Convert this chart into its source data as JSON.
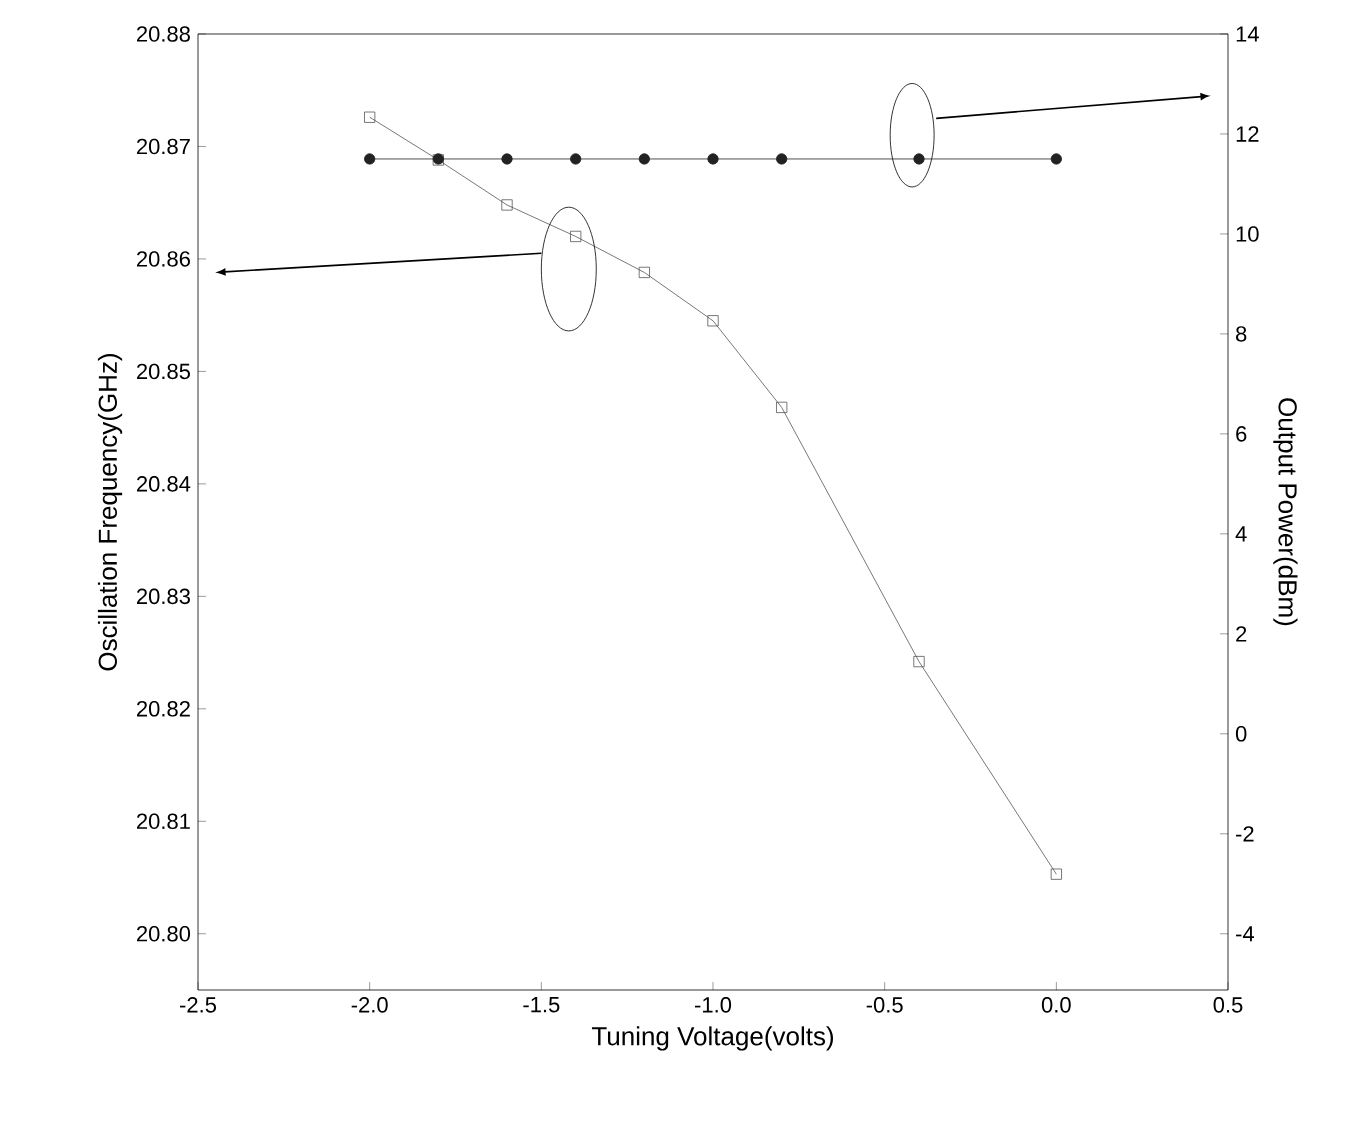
{
  "chart_data": {
    "type": "line",
    "xlabel": "Tuning Voltage(volts)",
    "ylabel": "Oscillation Frequency(GHz)",
    "y2label": "Output Power(dBm)",
    "xlim": [
      -2.5,
      0.5
    ],
    "ylim": [
      20.795,
      20.88
    ],
    "y2lim": [
      -5.125,
      14
    ],
    "xticks": [
      {
        "value": -2.5,
        "label": "-2.5"
      },
      {
        "value": -2,
        "label": "-2.0"
      },
      {
        "value": -1.5,
        "label": "-1.5"
      },
      {
        "value": -1,
        "label": "-1.0"
      },
      {
        "value": -0.5,
        "label": "-0.5"
      },
      {
        "value": 0,
        "label": "0.0"
      },
      {
        "value": 0.5,
        "label": "0.5"
      }
    ],
    "yticks": [
      {
        "value": 20.8,
        "label": "20.80"
      },
      {
        "value": 20.81,
        "label": "20.81"
      },
      {
        "value": 20.82,
        "label": "20.82"
      },
      {
        "value": 20.83,
        "label": "20.83"
      },
      {
        "value": 20.84,
        "label": "20.84"
      },
      {
        "value": 20.85,
        "label": "20.85"
      },
      {
        "value": 20.86,
        "label": "20.86"
      },
      {
        "value": 20.87,
        "label": "20.87"
      },
      {
        "value": 20.88,
        "label": "20.88"
      }
    ],
    "y2ticks": [
      -4,
      -2,
      0,
      2,
      4,
      6,
      8,
      10,
      12,
      14
    ],
    "series": [
      {
        "color": "#555555",
        "marker": "square",
        "x": [
          -2.0,
          -1.8,
          -1.6,
          -1.4,
          -1.2,
          -1.0,
          -0.8,
          -0.4,
          0.0
        ],
        "values": [
          20.8726,
          20.8688,
          20.8648,
          20.862,
          20.8588,
          20.8545,
          20.8468,
          20.8242,
          20.8053
        ]
      },
      {
        "color": "#222222",
        "marker": "circle",
        "axis": "y2",
        "x": [
          -2.0,
          -1.8,
          -1.6,
          -1.4,
          -1.2,
          -1.0,
          -0.8,
          -0.4,
          0.0
        ],
        "values": [
          11.5,
          11.5,
          11.5,
          11.5,
          11.5,
          11.5,
          11.5,
          11.5,
          11.5
        ]
      }
    ],
    "grid": false,
    "line_style": "solid"
  }
}
